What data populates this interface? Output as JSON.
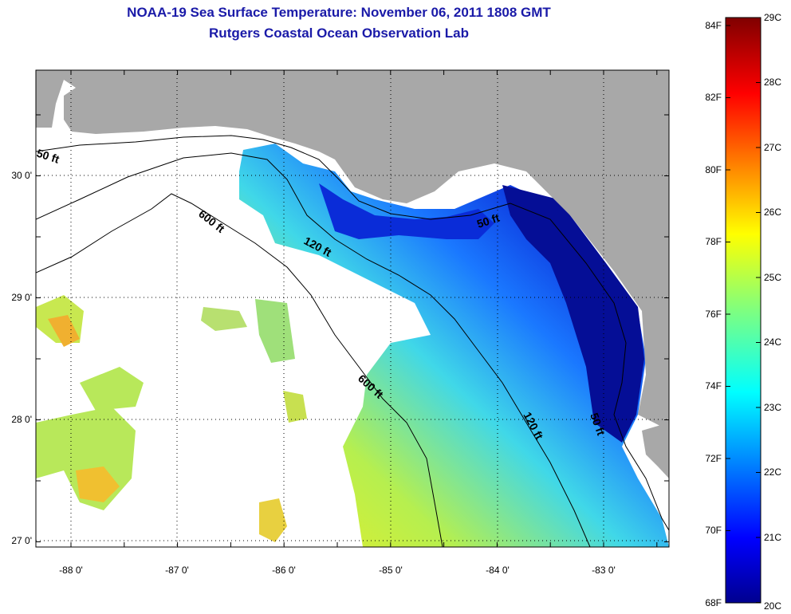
{
  "header": {
    "title": "NOAA-19 Sea Surface Temperature:  November 06, 2011 1808 GMT",
    "subtitle": "Rutgers Coastal Ocean Observation Lab"
  },
  "map": {
    "lon_ticks": [
      "-88 0'",
      "-87 0'",
      "-86 0'",
      "-85 0'",
      "-84 0'",
      "-83 0'"
    ],
    "lat_ticks": [
      "30 0'",
      "29 0'",
      "28 0'",
      "27 0'"
    ],
    "contour_labels": {
      "c50_west": "50 ft",
      "c50_east": "50 ft",
      "c50_south": "50 ft",
      "c120_north": "120 ft",
      "c120_south": "120 ft",
      "c600_north": "600 ft",
      "c600_south": "600 ft"
    },
    "colors": {
      "land": "#a8a8a8",
      "cloud": "#ffffff",
      "border": "#000000"
    }
  },
  "colorbar": {
    "fahrenheit": [
      "84F",
      "82F",
      "80F",
      "78F",
      "76F",
      "74F",
      "72F",
      "70F",
      "68F"
    ],
    "celsius": [
      "29C",
      "28C",
      "27C",
      "26C",
      "25C",
      "24C",
      "23C",
      "22C",
      "21C",
      "20C"
    ]
  }
}
